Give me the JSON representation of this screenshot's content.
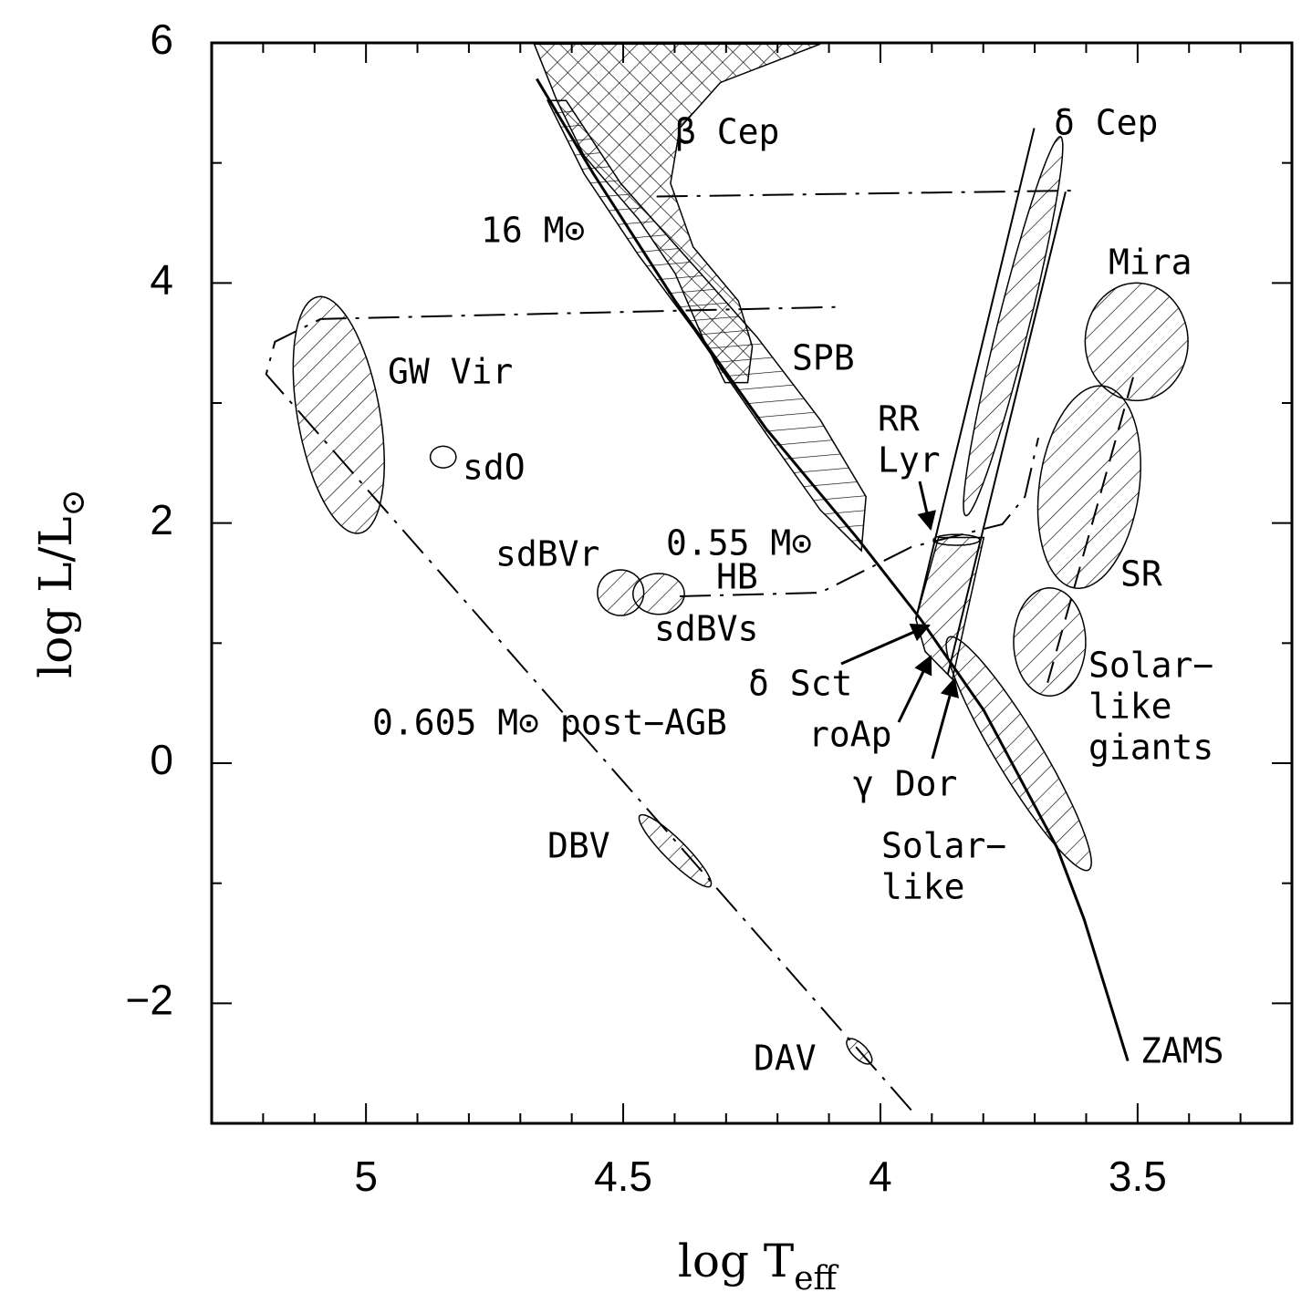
{
  "chart_data": {
    "type": "hr-diagram",
    "xlabel": {
      "text": "log T",
      "sub": "eff"
    },
    "ylabel": {
      "text": "log L/L",
      "sub": "⊙"
    },
    "xlim": [
      5.3,
      3.2
    ],
    "ylim": [
      -3,
      6
    ],
    "xticks": [
      5,
      4.5,
      4,
      3.5
    ],
    "yticks": [
      {
        "value": -2,
        "label": "−2"
      },
      0,
      2,
      4,
      6
    ],
    "xminorticks": [
      5.2,
      5.1,
      4.9,
      4.8,
      4.7,
      4.6,
      4.4,
      4.3,
      4.2,
      4.1,
      3.9,
      3.8,
      3.7,
      3.6,
      3.4,
      3.3
    ],
    "yminorticks": [
      -1,
      1,
      3,
      5
    ],
    "lines": [
      {
        "style": "solid-thick",
        "x": [
          4.668,
          4.558,
          4.399,
          4.223,
          4.046,
          3.922,
          3.799,
          3.657,
          3.604,
          3.519
        ],
        "y": [
          5.7,
          4.91,
          3.85,
          2.79,
          1.88,
          1.2,
          0.44,
          -0.7,
          -1.3,
          -2.48
        ]
      },
      {
        "style": "dashdot",
        "x": [
          3.94,
          5.194,
          5.177,
          5.088,
          4.083
        ],
        "y": [
          -2.89,
          3.24,
          3.51,
          3.7,
          3.8
        ]
      },
      {
        "style": "dashdot",
        "x": [
          4.435,
          3.613
        ],
        "y": [
          4.72,
          4.77
        ]
      },
      {
        "style": "dashdot",
        "x": [
          4.39,
          4.117,
          3.94,
          3.763,
          3.719,
          3.693
        ],
        "y": [
          1.39,
          1.42,
          1.8,
          1.99,
          2.22,
          2.71
        ]
      },
      {
        "style": "solid",
        "x": [
          3.931,
          3.701
        ],
        "y": [
          1.2,
          5.29
        ]
      },
      {
        "style": "solid",
        "x": [
          3.869,
          3.64
        ],
        "y": [
          0.74,
          4.76
        ]
      },
      {
        "style": "dashed",
        "x": [
          3.675,
          3.507
        ],
        "y": [
          0.67,
          3.24
        ]
      }
    ],
    "polygons": [
      {
        "hatch": "cross",
        "x": [
          4.673,
          4.117,
          4.311,
          4.39,
          4.408,
          4.364,
          4.276,
          4.249,
          4.258,
          4.302,
          4.346,
          4.399,
          4.47,
          4.576,
          4.629
        ],
        "y": [
          5.99,
          5.99,
          5.67,
          5.29,
          4.83,
          4.3,
          3.85,
          3.47,
          3.17,
          3.17,
          3.55,
          4.08,
          4.53,
          5.06,
          5.52
        ]
      },
      {
        "hatch": "horizontal",
        "x": [
          4.611,
          4.505,
          4.364,
          4.24,
          4.117,
          4.028,
          4.037,
          4.117,
          4.223,
          4.364,
          4.47,
          4.576,
          4.647
        ],
        "y": [
          5.52,
          4.83,
          4.15,
          3.55,
          2.86,
          2.22,
          1.77,
          2.11,
          2.75,
          3.62,
          4.23,
          4.91,
          5.52
        ]
      },
      {
        "hatch": "diagonal",
        "x": [
          3.931,
          3.887,
          3.799,
          3.86,
          3.913
        ],
        "y": [
          1.2,
          1.88,
          1.88,
          0.7,
          0.93
        ]
      }
    ],
    "ellipses": [
      {
        "hatch": "diagonal",
        "cx": 5.053,
        "cy": 2.9,
        "rx": 0.08,
        "ry": 1.0,
        "angle": 10
      },
      {
        "hatch": "none",
        "cx": 4.85,
        "cy": 2.55,
        "rx": 0.025,
        "ry": 0.09,
        "angle": 0
      },
      {
        "hatch": "diagonal",
        "cx": 4.505,
        "cy": 1.42,
        "rx": 0.045,
        "ry": 0.19,
        "angle": 0
      },
      {
        "hatch": "diagonal",
        "cx": 4.431,
        "cy": 1.41,
        "rx": 0.05,
        "ry": 0.17,
        "angle": 0
      },
      {
        "hatch": "diagonal",
        "cx": 4.399,
        "cy": -0.73,
        "rx": 0.097,
        "ry": 0.09,
        "angle": -45
      },
      {
        "hatch": "diagonal",
        "cx": 4.041,
        "cy": -2.4,
        "rx": 0.032,
        "ry": 0.06,
        "angle": -45
      },
      {
        "hatch": "diagonal",
        "cx": 3.742,
        "cy": 3.64,
        "rx": 0.38,
        "ry": 0.13,
        "angle": 76
      },
      {
        "hatch": "diagonal",
        "cx": 3.502,
        "cy": 3.51,
        "rx": 0.1,
        "ry": 0.49,
        "angle": 0
      },
      {
        "hatch": "diagonal",
        "cx": 3.594,
        "cy": 2.3,
        "rx": 0.097,
        "ry": 0.85,
        "angle": -8
      },
      {
        "hatch": "diagonal",
        "cx": 3.671,
        "cy": 1.01,
        "rx": 0.07,
        "ry": 0.45,
        "angle": 0
      },
      {
        "hatch": "diagonal",
        "cx": 3.731,
        "cy": 0.08,
        "rx": 0.264,
        "ry": 0.19,
        "angle": -59
      },
      {
        "hatch": "none",
        "cx": 3.852,
        "cy": 1.86,
        "rx": 0.045,
        "ry": 0.045,
        "angle": 0
      }
    ],
    "annotations": [
      {
        "text": "β Cep"
      },
      {
        "text": "δ Cep"
      },
      {
        "text": "16 M⊙"
      },
      {
        "text": "Mira"
      },
      {
        "text": "GW Vir"
      },
      {
        "text": "SPB"
      },
      {
        "lines": [
          "RR",
          "Lyr"
        ]
      },
      {
        "text": "sdO"
      },
      {
        "text": "sdBVr"
      },
      {
        "text": "0.55 M⊙"
      },
      {
        "text": "HB"
      },
      {
        "text": "sdBVs"
      },
      {
        "text": "SR"
      },
      {
        "text": "δ Sct"
      },
      {
        "text": "roAp"
      },
      {
        "lines": [
          "Solar−",
          "like",
          "giants"
        ]
      },
      {
        "text": "γ Dor"
      },
      {
        "lines": [
          "Solar−",
          "like"
        ]
      },
      {
        "text": "0.605 M⊙ post−AGB"
      },
      {
        "text": "DBV"
      },
      {
        "text": "DAV"
      },
      {
        "text": "ZAMS"
      }
    ]
  }
}
